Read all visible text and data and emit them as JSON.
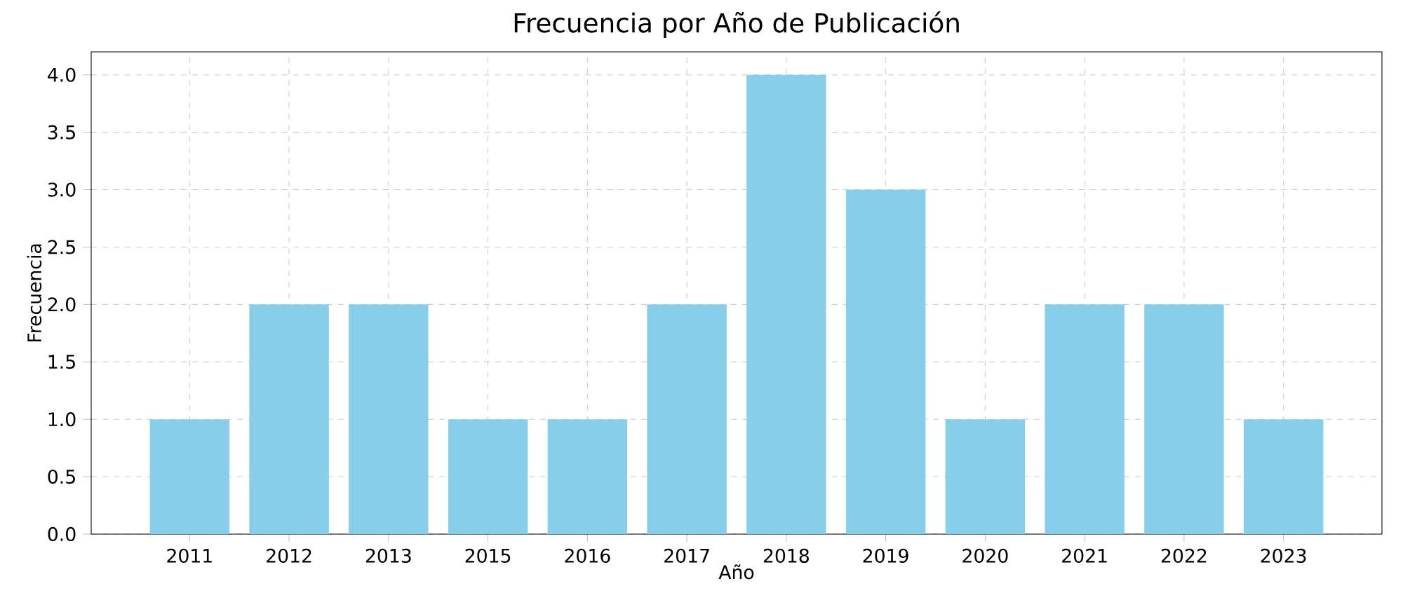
{
  "chart_data": {
    "type": "bar",
    "title": "Frecuencia por Año de Publicación",
    "xlabel": "Año",
    "ylabel": "Frecuencia",
    "categories": [
      "2011",
      "2012",
      "2013",
      "2015",
      "2016",
      "2017",
      "2018",
      "2019",
      "2020",
      "2021",
      "2022",
      "2023"
    ],
    "values": [
      1,
      2,
      2,
      1,
      1,
      2,
      4,
      3,
      1,
      2,
      2,
      1
    ],
    "color": "#87ceeb",
    "ylim": [
      0,
      4.2
    ],
    "yticks": [
      {
        "value": 0,
        "label": "0.0"
      },
      {
        "value": 0.5,
        "label": "0.5"
      },
      {
        "value": 1,
        "label": "1.0"
      },
      {
        "value": 1.5,
        "label": "1.5"
      },
      {
        "value": 2,
        "label": "2.0"
      },
      {
        "value": 2.5,
        "label": "2.5"
      },
      {
        "value": 3,
        "label": "3.0"
      },
      {
        "value": 3.5,
        "label": "3.5"
      },
      {
        "value": 4,
        "label": "4.0"
      }
    ],
    "grid": true
  }
}
